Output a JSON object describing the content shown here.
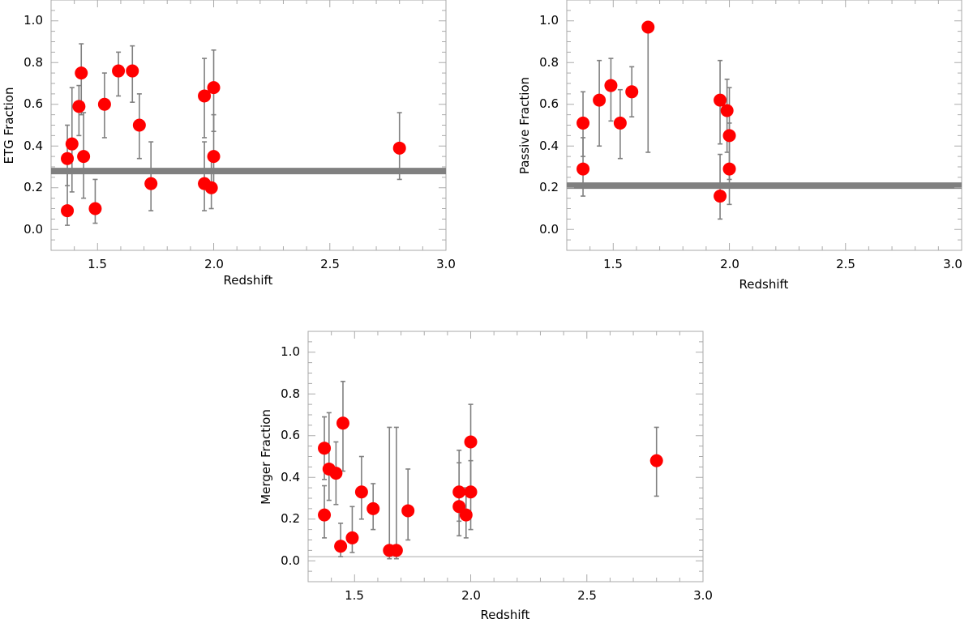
{
  "chart_data": [
    {
      "type": "scatter",
      "id": "etg",
      "xlabel": "Redshift",
      "ylabel": "ETG Fraction",
      "xlim": [
        1.3,
        3.0
      ],
      "ylim": [
        -0.1,
        1.1
      ],
      "xticks": [
        1.5,
        2.0,
        2.5,
        3.0
      ],
      "xtick_labels": [
        "1.5",
        "2.0",
        "2.5",
        "3.0"
      ],
      "yticks": [
        0.0,
        0.2,
        0.4,
        0.6,
        0.8,
        1.0
      ],
      "ytick_labels": [
        "0.0",
        "0.2",
        "0.4",
        "0.6",
        "0.8",
        "1.0"
      ],
      "reference_line": {
        "y": 0.28,
        "style": "thick",
        "color": "#808080"
      },
      "point_color": "#ff0000",
      "points": [
        {
          "x": 1.37,
          "y": 0.34,
          "lo": 0.21,
          "hi": 0.5
        },
        {
          "x": 1.37,
          "y": 0.09,
          "lo": 0.02,
          "hi": 0.29
        },
        {
          "x": 1.39,
          "y": 0.41,
          "lo": 0.18,
          "hi": 0.68
        },
        {
          "x": 1.42,
          "y": 0.59,
          "lo": 0.45,
          "hi": 0.69
        },
        {
          "x": 1.43,
          "y": 0.75,
          "lo": 0.55,
          "hi": 0.89
        },
        {
          "x": 1.44,
          "y": 0.35,
          "lo": 0.15,
          "hi": 0.56
        },
        {
          "x": 1.49,
          "y": 0.1,
          "lo": 0.03,
          "hi": 0.24
        },
        {
          "x": 1.53,
          "y": 0.6,
          "lo": 0.44,
          "hi": 0.75
        },
        {
          "x": 1.59,
          "y": 0.76,
          "lo": 0.64,
          "hi": 0.85
        },
        {
          "x": 1.65,
          "y": 0.76,
          "lo": 0.61,
          "hi": 0.88
        },
        {
          "x": 1.68,
          "y": 0.5,
          "lo": 0.34,
          "hi": 0.65
        },
        {
          "x": 1.73,
          "y": 0.22,
          "lo": 0.09,
          "hi": 0.42
        },
        {
          "x": 1.96,
          "y": 0.64,
          "lo": 0.44,
          "hi": 0.82
        },
        {
          "x": 1.96,
          "y": 0.22,
          "lo": 0.09,
          "hi": 0.42
        },
        {
          "x": 1.99,
          "y": 0.2,
          "lo": 0.1,
          "hi": 0.35
        },
        {
          "x": 2.0,
          "y": 0.68,
          "lo": 0.47,
          "hi": 0.86
        },
        {
          "x": 2.0,
          "y": 0.35,
          "lo": 0.2,
          "hi": 0.55
        },
        {
          "x": 2.8,
          "y": 0.39,
          "lo": 0.24,
          "hi": 0.56
        }
      ]
    },
    {
      "type": "scatter",
      "id": "passive",
      "xlabel": "Redshift",
      "ylabel": "Passive Fraction",
      "xlim": [
        1.3,
        3.0
      ],
      "ylim": [
        -0.1,
        1.1
      ],
      "xticks": [
        1.5,
        2.0,
        2.5,
        3.0
      ],
      "xtick_labels": [
        "1.5",
        "2.0",
        "2.5",
        "3.0"
      ],
      "yticks": [
        0.0,
        0.2,
        0.4,
        0.6,
        0.8,
        1.0
      ],
      "ytick_labels": [
        "0.0",
        "0.2",
        "0.4",
        "0.6",
        "0.8",
        "1.0"
      ],
      "reference_line": {
        "y": 0.21,
        "style": "thick",
        "color": "#808080"
      },
      "point_color": "#ff0000",
      "points": [
        {
          "x": 1.37,
          "y": 0.51,
          "lo": 0.35,
          "hi": 0.66
        },
        {
          "x": 1.37,
          "y": 0.29,
          "lo": 0.16,
          "hi": 0.44
        },
        {
          "x": 1.44,
          "y": 0.62,
          "lo": 0.4,
          "hi": 0.81
        },
        {
          "x": 1.49,
          "y": 0.69,
          "lo": 0.52,
          "hi": 0.82
        },
        {
          "x": 1.53,
          "y": 0.51,
          "lo": 0.34,
          "hi": 0.67
        },
        {
          "x": 1.58,
          "y": 0.66,
          "lo": 0.54,
          "hi": 0.78
        },
        {
          "x": 1.65,
          "y": 0.97,
          "lo": 0.37,
          "hi": 0.97
        },
        {
          "x": 1.96,
          "y": 0.62,
          "lo": 0.41,
          "hi": 0.81
        },
        {
          "x": 1.96,
          "y": 0.16,
          "lo": 0.05,
          "hi": 0.36
        },
        {
          "x": 1.99,
          "y": 0.57,
          "lo": 0.37,
          "hi": 0.72
        },
        {
          "x": 2.0,
          "y": 0.45,
          "lo": 0.24,
          "hi": 0.68
        },
        {
          "x": 2.0,
          "y": 0.29,
          "lo": 0.12,
          "hi": 0.51
        }
      ]
    },
    {
      "type": "scatter",
      "id": "merger",
      "xlabel": "Redshift",
      "ylabel": "Merger Fraction",
      "xlim": [
        1.3,
        3.0
      ],
      "ylim": [
        -0.1,
        1.1
      ],
      "xticks": [
        1.5,
        2.0,
        2.5,
        3.0
      ],
      "xtick_labels": [
        "1.5",
        "2.0",
        "2.5",
        "3.0"
      ],
      "yticks": [
        0.0,
        0.2,
        0.4,
        0.6,
        0.8,
        1.0
      ],
      "ytick_labels": [
        "0.0",
        "0.2",
        "0.4",
        "0.6",
        "0.8",
        "1.0"
      ],
      "reference_line": {
        "y": 0.02,
        "style": "thin",
        "color": "#aaaaaa"
      },
      "point_color": "#ff0000",
      "points": [
        {
          "x": 1.37,
          "y": 0.54,
          "lo": 0.39,
          "hi": 0.69
        },
        {
          "x": 1.37,
          "y": 0.22,
          "lo": 0.11,
          "hi": 0.36
        },
        {
          "x": 1.39,
          "y": 0.44,
          "lo": 0.29,
          "hi": 0.71
        },
        {
          "x": 1.42,
          "y": 0.42,
          "lo": 0.27,
          "hi": 0.57
        },
        {
          "x": 1.44,
          "y": 0.07,
          "lo": 0.02,
          "hi": 0.18
        },
        {
          "x": 1.45,
          "y": 0.66,
          "lo": 0.43,
          "hi": 0.86
        },
        {
          "x": 1.49,
          "y": 0.11,
          "lo": 0.04,
          "hi": 0.26
        },
        {
          "x": 1.53,
          "y": 0.33,
          "lo": 0.2,
          "hi": 0.5
        },
        {
          "x": 1.58,
          "y": 0.25,
          "lo": 0.15,
          "hi": 0.37
        },
        {
          "x": 1.65,
          "y": 0.05,
          "lo": 0.01,
          "hi": 0.64
        },
        {
          "x": 1.68,
          "y": 0.05,
          "lo": 0.01,
          "hi": 0.64
        },
        {
          "x": 1.73,
          "y": 0.24,
          "lo": 0.1,
          "hi": 0.44
        },
        {
          "x": 1.95,
          "y": 0.33,
          "lo": 0.19,
          "hi": 0.53
        },
        {
          "x": 1.95,
          "y": 0.26,
          "lo": 0.12,
          "hi": 0.47
        },
        {
          "x": 1.98,
          "y": 0.22,
          "lo": 0.11,
          "hi": 0.35
        },
        {
          "x": 2.0,
          "y": 0.57,
          "lo": 0.35,
          "hi": 0.75
        },
        {
          "x": 2.0,
          "y": 0.33,
          "lo": 0.15,
          "hi": 0.48
        },
        {
          "x": 2.8,
          "y": 0.48,
          "lo": 0.31,
          "hi": 0.64
        }
      ]
    }
  ]
}
